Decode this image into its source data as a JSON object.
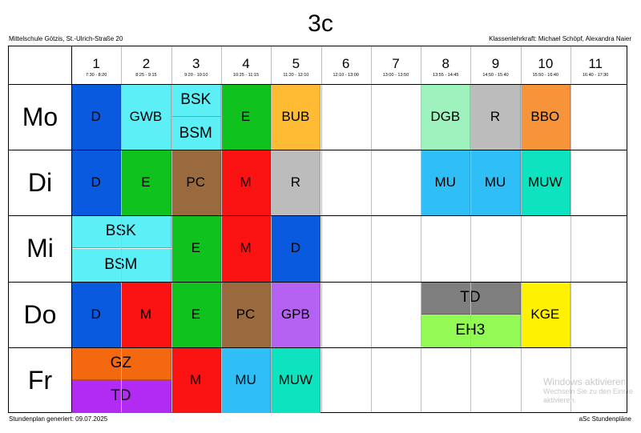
{
  "header": {
    "class_name": "3c",
    "school": "Mittelschule Götzis, St.-Ulrich-Straße 20",
    "teachers": "Klassenlehrkraft: Michael Schöpf, Alexandra Naier"
  },
  "footer": {
    "generated": "Stundenplan generiert: 09.07.2025",
    "brand": "aSc Stundenpläne"
  },
  "watermark": {
    "line1": "Windows aktivieren",
    "line2": "Wechseln Sie zu den Einste",
    "line3": "aktivieren."
  },
  "periods": [
    {
      "num": "1",
      "time": "7:30 - 8:20"
    },
    {
      "num": "2",
      "time": "8:25 - 9:15"
    },
    {
      "num": "3",
      "time": "9:20 - 10:10"
    },
    {
      "num": "4",
      "time": "10:25 - 11:15"
    },
    {
      "num": "5",
      "time": "11:20 - 12:10"
    },
    {
      "num": "6",
      "time": "12:10 - 13:00"
    },
    {
      "num": "7",
      "time": "13:00 - 13:50"
    },
    {
      "num": "8",
      "time": "13:55 - 14:45"
    },
    {
      "num": "9",
      "time": "14:50 - 15:40"
    },
    {
      "num": "10",
      "time": "15:50 - 16:40"
    },
    {
      "num": "11",
      "time": "16:40 - 17:30"
    }
  ],
  "days": [
    "Mo",
    "Di",
    "Mi",
    "Do",
    "Fr"
  ],
  "colors": {
    "D": "#0a5ae0",
    "GWB": "#5cf0f6",
    "BSK": "#5cf0f6",
    "BSM": "#5cf0f6",
    "E": "#0fc21e",
    "BUB": "#ffbb33",
    "DGB": "#9ef2be",
    "R": "#bcbcbc",
    "BBO": "#f7943a",
    "PC": "#9a6a3f",
    "M": "#fb1313",
    "MU": "#2fbef5",
    "MUW": "#0de3bf",
    "GPB": "#b562f2",
    "TD_do": "#7f7f7f",
    "EH3": "#93fa55",
    "KGE": "#fff200",
    "GZ": "#f4690f",
    "TD_fr": "#b12bf2"
  },
  "lessons": [
    {
      "day": 0,
      "period": 0,
      "span": 1,
      "part": "full",
      "label": "D",
      "color": "D"
    },
    {
      "day": 0,
      "period": 1,
      "span": 1,
      "part": "full",
      "label": "GWB",
      "color": "GWB"
    },
    {
      "day": 0,
      "period": 2,
      "span": 1,
      "part": "top",
      "label": "BSK",
      "color": "BSK"
    },
    {
      "day": 0,
      "period": 2,
      "span": 1,
      "part": "bottom",
      "label": "BSM",
      "color": "BSM"
    },
    {
      "day": 0,
      "period": 3,
      "span": 1,
      "part": "full",
      "label": "E",
      "color": "E"
    },
    {
      "day": 0,
      "period": 4,
      "span": 1,
      "part": "full",
      "label": "BUB",
      "color": "BUB"
    },
    {
      "day": 0,
      "period": 7,
      "span": 1,
      "part": "full",
      "label": "DGB",
      "color": "DGB"
    },
    {
      "day": 0,
      "period": 8,
      "span": 1,
      "part": "full",
      "label": "R",
      "color": "R"
    },
    {
      "day": 0,
      "period": 9,
      "span": 1,
      "part": "full",
      "label": "BBO",
      "color": "BBO"
    },
    {
      "day": 1,
      "period": 0,
      "span": 1,
      "part": "full",
      "label": "D",
      "color": "D"
    },
    {
      "day": 1,
      "period": 1,
      "span": 1,
      "part": "full",
      "label": "E",
      "color": "E"
    },
    {
      "day": 1,
      "period": 2,
      "span": 1,
      "part": "full",
      "label": "PC",
      "color": "PC"
    },
    {
      "day": 1,
      "period": 3,
      "span": 1,
      "part": "full",
      "label": "M",
      "color": "M"
    },
    {
      "day": 1,
      "period": 4,
      "span": 1,
      "part": "full",
      "label": "R",
      "color": "R"
    },
    {
      "day": 1,
      "period": 7,
      "span": 1,
      "part": "full",
      "label": "MU",
      "color": "MU"
    },
    {
      "day": 1,
      "period": 8,
      "span": 1,
      "part": "full",
      "label": "MU",
      "color": "MU"
    },
    {
      "day": 1,
      "period": 9,
      "span": 1,
      "part": "full",
      "label": "MUW",
      "color": "MUW"
    },
    {
      "day": 2,
      "period": 0,
      "span": 2,
      "part": "top",
      "label": "BSK",
      "color": "BSK"
    },
    {
      "day": 2,
      "period": 0,
      "span": 2,
      "part": "bottom",
      "label": "BSM",
      "color": "BSM"
    },
    {
      "day": 2,
      "period": 2,
      "span": 1,
      "part": "full",
      "label": "E",
      "color": "E"
    },
    {
      "day": 2,
      "period": 3,
      "span": 1,
      "part": "full",
      "label": "M",
      "color": "M"
    },
    {
      "day": 2,
      "period": 4,
      "span": 1,
      "part": "full",
      "label": "D",
      "color": "D"
    },
    {
      "day": 3,
      "period": 0,
      "span": 1,
      "part": "full",
      "label": "D",
      "color": "D"
    },
    {
      "day": 3,
      "period": 1,
      "span": 1,
      "part": "full",
      "label": "M",
      "color": "M"
    },
    {
      "day": 3,
      "period": 2,
      "span": 1,
      "part": "full",
      "label": "E",
      "color": "E"
    },
    {
      "day": 3,
      "period": 3,
      "span": 1,
      "part": "full",
      "label": "PC",
      "color": "PC"
    },
    {
      "day": 3,
      "period": 4,
      "span": 1,
      "part": "full",
      "label": "GPB",
      "color": "GPB"
    },
    {
      "day": 3,
      "period": 7,
      "span": 2,
      "part": "top",
      "label": "TD",
      "color": "TD_do"
    },
    {
      "day": 3,
      "period": 7,
      "span": 2,
      "part": "bottom",
      "label": "EH3",
      "color": "EH3"
    },
    {
      "day": 3,
      "period": 9,
      "span": 1,
      "part": "full",
      "label": "KGE",
      "color": "KGE"
    },
    {
      "day": 4,
      "period": 0,
      "span": 2,
      "part": "top",
      "label": "GZ",
      "color": "GZ"
    },
    {
      "day": 4,
      "period": 0,
      "span": 2,
      "part": "bottom",
      "label": "TD",
      "color": "TD_fr"
    },
    {
      "day": 4,
      "period": 2,
      "span": 1,
      "part": "full",
      "label": "M",
      "color": "M"
    },
    {
      "day": 4,
      "period": 3,
      "span": 1,
      "part": "full",
      "label": "MU",
      "color": "MU"
    },
    {
      "day": 4,
      "period": 4,
      "span": 1,
      "part": "full",
      "label": "MUW",
      "color": "MUW"
    }
  ]
}
